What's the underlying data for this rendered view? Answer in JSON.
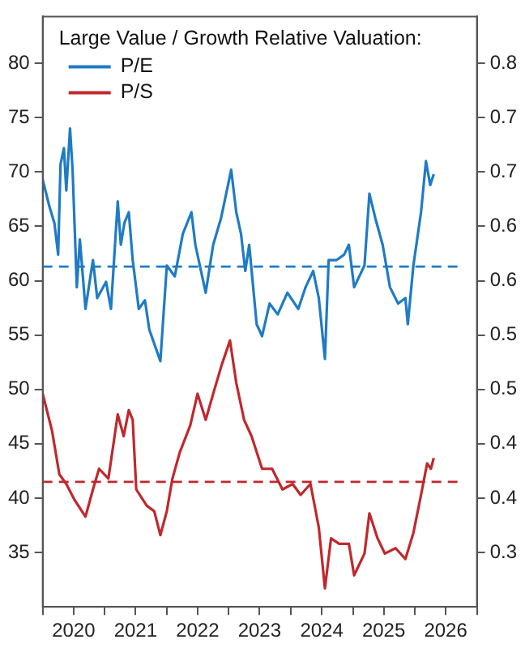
{
  "chart_data": {
    "type": "line",
    "legend_title": "Large Value / Growth Relative Valuation:",
    "legend": "top left",
    "grid": false,
    "marker": "none",
    "line_style": "solid",
    "xlim": [
      "2020-01-01",
      "2027-01-01"
    ],
    "xticks": [
      {
        "value": "2020-01-01",
        "label": null
      },
      {
        "value": "2020-07-01",
        "label": "2020"
      },
      {
        "value": "2021-01-01",
        "label": null
      },
      {
        "value": "2021-07-01",
        "label": "2021"
      },
      {
        "value": "2022-01-01",
        "label": null
      },
      {
        "value": "2022-07-01",
        "label": "2022"
      },
      {
        "value": "2023-01-01",
        "label": null
      },
      {
        "value": "2023-07-01",
        "label": "2023"
      },
      {
        "value": "2024-01-01",
        "label": null
      },
      {
        "value": "2024-07-01",
        "label": "2024"
      },
      {
        "value": "2025-01-01",
        "label": null
      },
      {
        "value": "2025-07-01",
        "label": "2025"
      },
      {
        "value": "2026-01-01",
        "label": null
      },
      {
        "value": "2026-07-01",
        "label": "2026"
      },
      {
        "value": "2027-01-01",
        "label": null
      }
    ],
    "ylim": [
      30,
      84.3
    ],
    "yticks": [
      35,
      40,
      45,
      50,
      55,
      60,
      65,
      70,
      75,
      80
    ],
    "y2lim": [
      0.3,
      0.843
    ],
    "y2ticks": [
      {
        "value": 0.35,
        "label": "0.3"
      },
      {
        "value": 0.4,
        "label": "0.4"
      },
      {
        "value": 0.45,
        "label": "0.4"
      },
      {
        "value": 0.5,
        "label": "0.5"
      },
      {
        "value": 0.55,
        "label": "0.5"
      },
      {
        "value": 0.6,
        "label": "0.6"
      },
      {
        "value": 0.65,
        "label": "0.6"
      },
      {
        "value": 0.7,
        "label": "0.7"
      },
      {
        "value": 0.75,
        "label": "0.7"
      },
      {
        "value": 0.8,
        "label": "0.8"
      }
    ],
    "series": [
      {
        "name": "P/E",
        "color": "#1f7bc4",
        "x": [
          "2020-01-01",
          "2020-02-10",
          "2020-03-10",
          "2020-04-01",
          "2020-04-15",
          "2020-05-05",
          "2020-05-19",
          "2020-06-10",
          "2020-06-25",
          "2020-07-20",
          "2020-08-07",
          "2020-09-09",
          "2020-10-23",
          "2020-11-17",
          "2021-01-08",
          "2021-02-06",
          "2021-03-18",
          "2021-04-05",
          "2021-04-26",
          "2021-05-22",
          "2021-06-14",
          "2021-07-20",
          "2021-08-25",
          "2021-09-20",
          "2021-11-24",
          "2022-01-01",
          "2022-02-17",
          "2022-04-05",
          "2022-05-26",
          "2022-06-18",
          "2022-08-18",
          "2022-10-01",
          "2022-11-17",
          "2023-01-15",
          "2023-02-14",
          "2023-03-14",
          "2023-04-08",
          "2023-05-01",
          "2023-06-14",
          "2023-07-16",
          "2023-08-29",
          "2023-10-16",
          "2023-12-12",
          "2024-02-14",
          "2024-03-28",
          "2024-05-12",
          "2024-06-14",
          "2024-07-20",
          "2024-08-11",
          "2024-09-27",
          "2024-11-10",
          "2024-12-08",
          "2025-01-08",
          "2025-03-10",
          "2025-04-08",
          "2025-05-12",
          "2025-06-25",
          "2025-08-07",
          "2025-09-24",
          "2025-11-06",
          "2025-11-20",
          "2025-12-23",
          "2026-02-06",
          "2026-03-07",
          "2026-04-01",
          "2026-04-22"
        ],
        "values": [
          69.3,
          66.8,
          65.3,
          62.4,
          70.7,
          72.2,
          68.3,
          74,
          70.2,
          59.4,
          63.8,
          57.4,
          61.9,
          58.4,
          59.9,
          57.4,
          67.3,
          63.3,
          65.3,
          66.3,
          61.9,
          57.4,
          58.2,
          55.5,
          52.6,
          61.4,
          60.4,
          64.3,
          66.3,
          63.3,
          58.9,
          63.3,
          65.8,
          70.2,
          66.3,
          64.3,
          60.9,
          63.3,
          56,
          54.9,
          57.9,
          56.9,
          58.9,
          57.4,
          59.4,
          60.9,
          58.4,
          52.8,
          61.9,
          61.9,
          62.4,
          63.3,
          59.4,
          61.4,
          68,
          65.8,
          63.3,
          59.4,
          57.9,
          58.4,
          56,
          61.4,
          66.3,
          71,
          68.8,
          69.8
        ]
      },
      {
        "name": "P/S",
        "color": "#c0282d",
        "x": [
          "2020-01-01",
          "2020-02-25",
          "2020-04-08",
          "2020-05-19",
          "2020-07-08",
          "2020-09-09",
          "2020-10-23",
          "2020-11-28",
          "2021-01-22",
          "2021-03-18",
          "2021-04-22",
          "2021-05-22",
          "2021-06-14",
          "2021-07-05",
          "2021-09-05",
          "2021-10-19",
          "2021-11-24",
          "2022-01-01",
          "2022-02-03",
          "2022-03-18",
          "2022-05-19",
          "2022-07-01",
          "2022-08-18",
          "2022-10-01",
          "2022-11-17",
          "2023-01-08",
          "2023-02-14",
          "2023-04-01",
          "2023-05-15",
          "2023-07-16",
          "2023-09-13",
          "2023-11-13",
          "2024-01-12",
          "2024-02-28",
          "2024-04-26",
          "2024-06-14",
          "2024-07-20",
          "2024-08-25",
          "2024-10-12",
          "2024-12-08",
          "2025-01-08",
          "2025-03-10",
          "2025-04-08",
          "2025-05-26",
          "2025-07-08",
          "2025-09-09",
          "2025-11-06",
          "2025-12-23",
          "2026-02-06",
          "2026-03-14",
          "2026-04-05",
          "2026-04-22"
        ],
        "values": [
          49.6,
          46.2,
          42.2,
          41.3,
          39.8,
          38.3,
          40.8,
          42.7,
          41.8,
          47.7,
          45.7,
          48.1,
          47.2,
          40.8,
          39.3,
          38.8,
          36.6,
          38.8,
          41.8,
          44.2,
          46.7,
          49.6,
          47.2,
          49.6,
          52.1,
          54.5,
          50.6,
          47.2,
          45.7,
          42.7,
          42.7,
          40.8,
          41.3,
          40.3,
          41.3,
          37.3,
          31.7,
          36.3,
          35.8,
          35.8,
          32.9,
          34.9,
          38.6,
          36.3,
          34.9,
          35.4,
          34.4,
          36.8,
          40.3,
          43.2,
          42.7,
          43.7
        ]
      }
    ],
    "ref_lines": [
      {
        "axis": "y",
        "value": 61.3,
        "color": "#1f7bc4",
        "line_style": "dashed"
      },
      {
        "axis": "y",
        "value": 41.5,
        "color": "#c0282d",
        "line_style": "dashed"
      }
    ]
  }
}
